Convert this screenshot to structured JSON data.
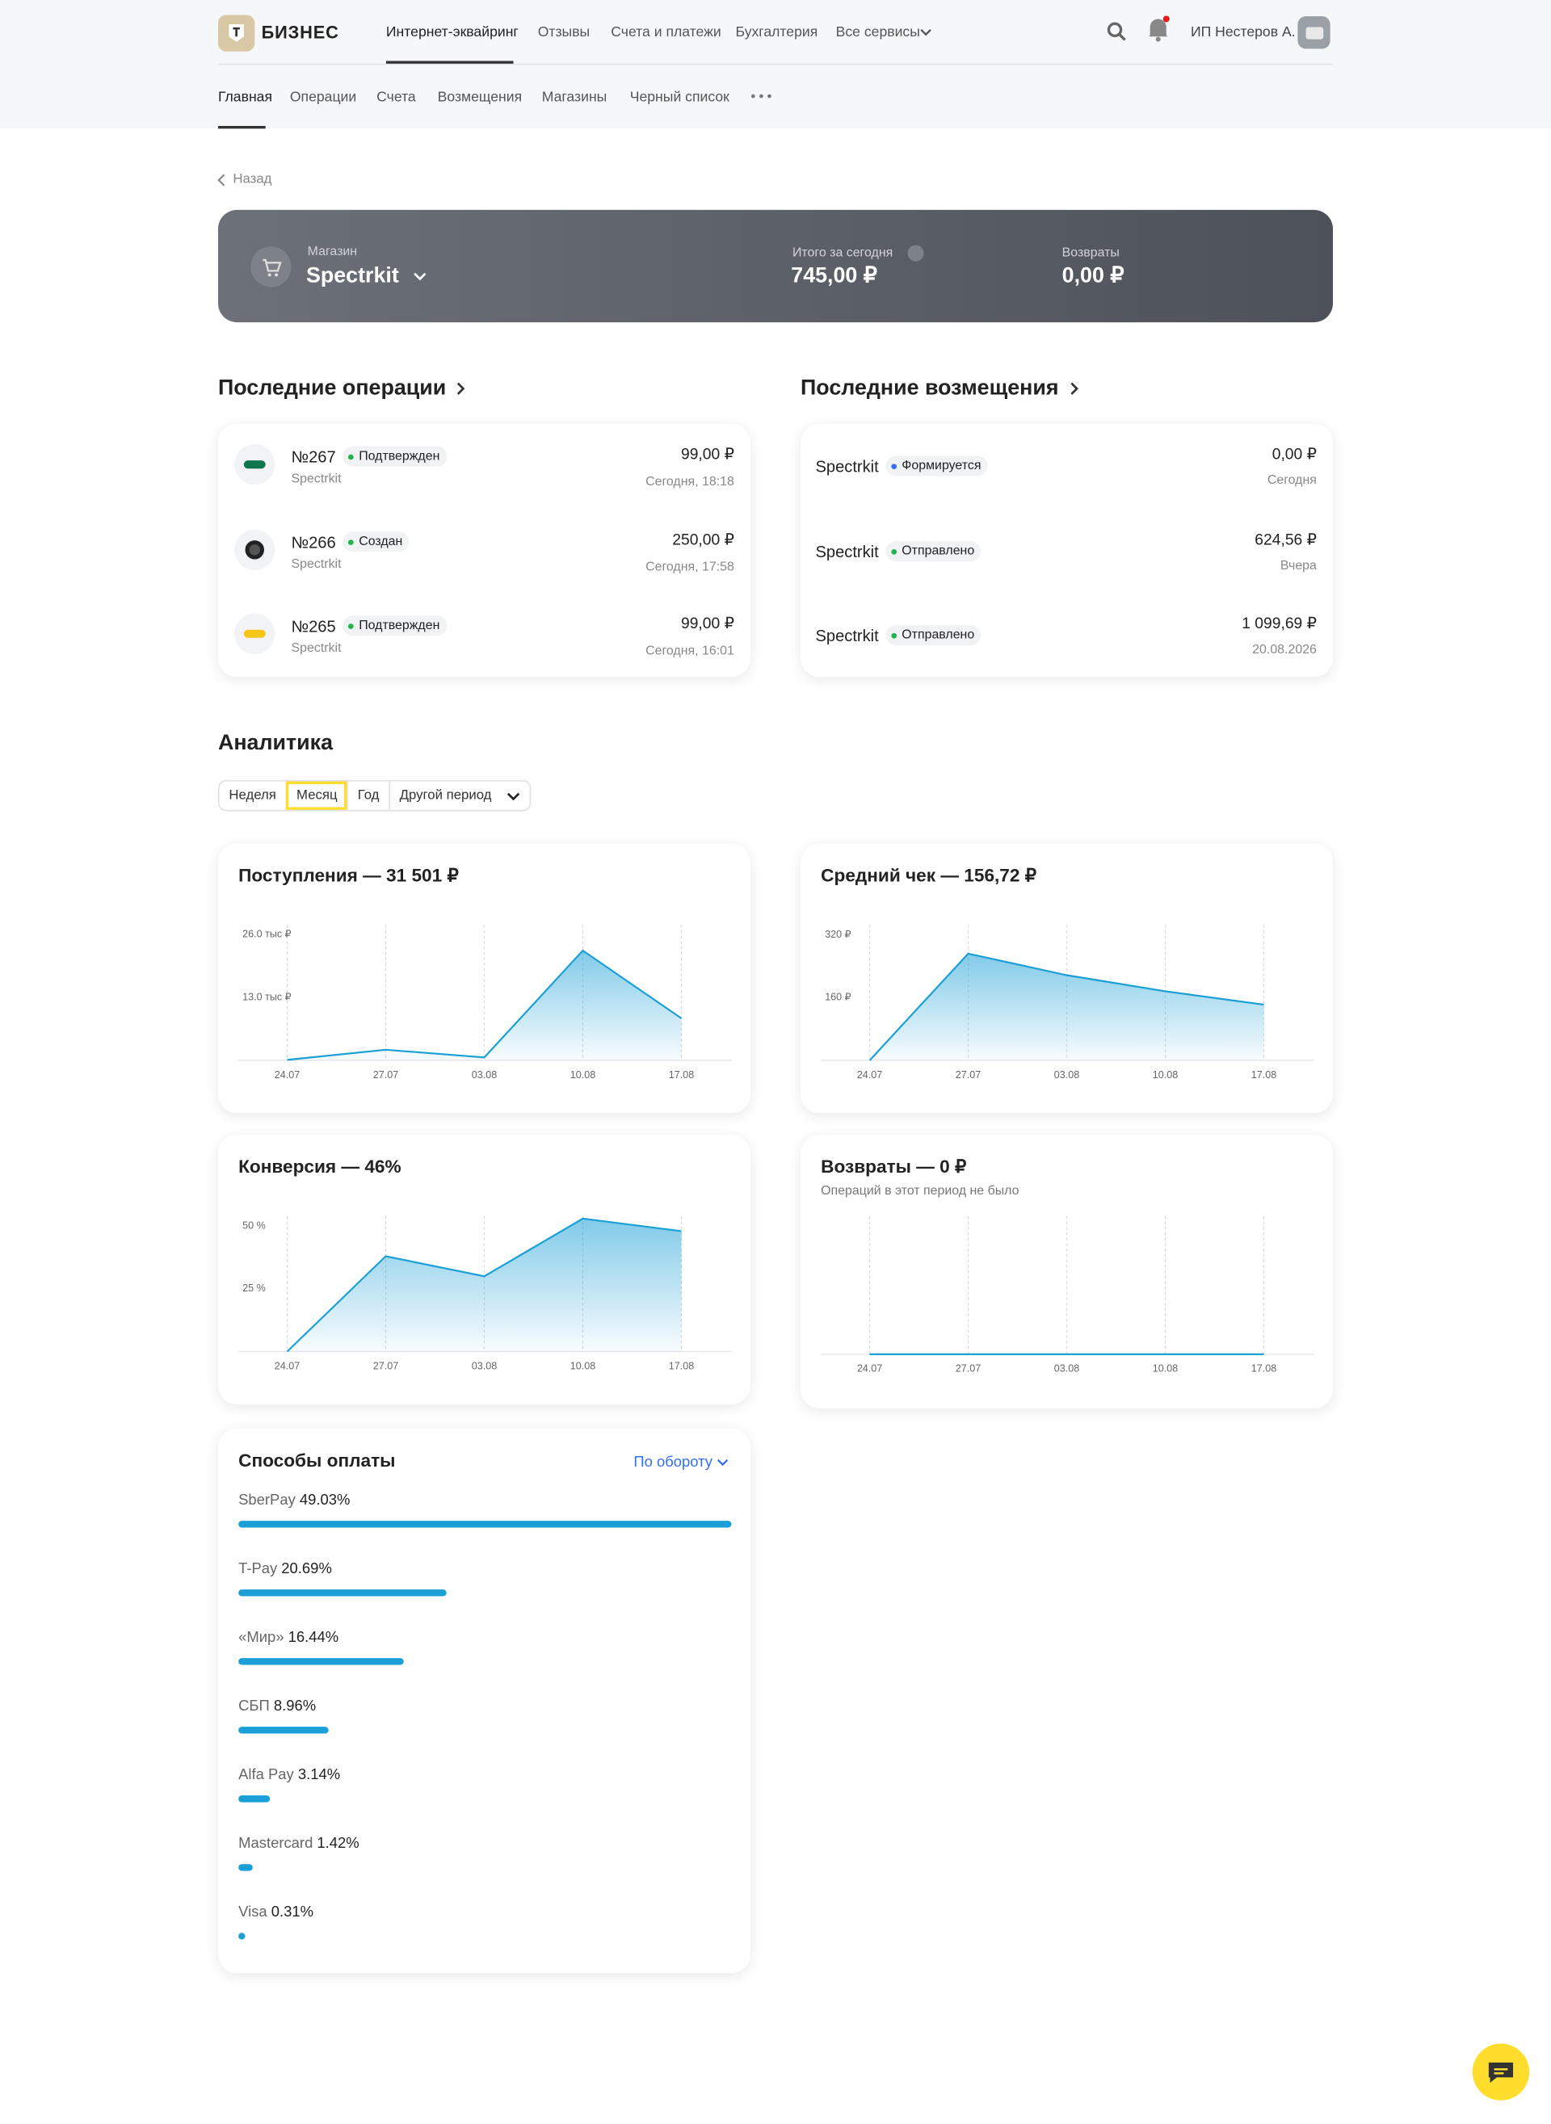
{
  "header": {
    "logo": "БИЗНЕС",
    "nav": [
      "Интернет-эквайринг",
      "Отзывы",
      "Счета и платежи",
      "Бухгалтерия",
      "Все сервисы"
    ],
    "user": "ИП Нестеров А."
  },
  "subnav": [
    "Главная",
    "Операции",
    "Счета",
    "Возмещения",
    "Магазины",
    "Черный список"
  ],
  "back": "Назад",
  "shop": {
    "label": "Магазин",
    "name": "Spectrkit",
    "today_label": "Итого за сегодня",
    "today_value": "745,00 ₽",
    "refunds_label": "Возвраты",
    "refunds_value": "0,00 ₽"
  },
  "operations": {
    "title": "Последние операции",
    "items": [
      {
        "number": "№267",
        "status": "Подтвержден",
        "shop": "Spectrkit",
        "amount": "99,00 ₽",
        "time": "Сегодня, 18:18"
      },
      {
        "number": "№266",
        "status": "Создан",
        "shop": "Spectrkit",
        "amount": "250,00 ₽",
        "time": "Сегодня, 17:58"
      },
      {
        "number": "№265",
        "status": "Подтвержден",
        "shop": "Spectrkit",
        "amount": "99,00 ₽",
        "time": "Сегодня, 16:01"
      }
    ]
  },
  "payouts": {
    "title": "Последние возмещения",
    "items": [
      {
        "shop": "Spectrkit",
        "status": "Формируется",
        "amount": "0,00 ₽",
        "date": "Сегодня"
      },
      {
        "shop": "Spectrkit",
        "status": "Отправлено",
        "amount": "624,56 ₽",
        "date": "Вчера"
      },
      {
        "shop": "Spectrkit",
        "status": "Отправлено",
        "amount": "1 099,69 ₽",
        "date": "20.08.2026"
      }
    ]
  },
  "analytics": {
    "title": "Аналитика",
    "periods": [
      "Неделя",
      "Месяц",
      "Год",
      "Другой период"
    ]
  },
  "payment_methods": {
    "sort": "По обороту"
  },
  "chart_data": [
    {
      "type": "line",
      "title": "Поступления — 31 501 ₽",
      "categories": [
        "24.07",
        "27.07",
        "03.08",
        "10.08",
        "17.08"
      ],
      "values": [
        100,
        2200,
        600,
        22700,
        8700
      ],
      "color": "#1a9fd6",
      "ylim": [
        0,
        28000
      ],
      "yticks": [
        {
          "value": 13000,
          "label": "13.0 тыс ₽"
        },
        {
          "value": 26000,
          "label": "26.0 тыс ₽"
        }
      ]
    },
    {
      "type": "line",
      "title": "Средний чек — 156,72 ₽",
      "categories": [
        "24.07",
        "27.07",
        "03.08",
        "10.08",
        "17.08"
      ],
      "values": [
        0,
        272,
        217,
        176,
        142
      ],
      "color": "#1a9fd6",
      "ylim": [
        0,
        345
      ],
      "yticks": [
        {
          "value": 160,
          "label": "160 ₽"
        },
        {
          "value": 320,
          "label": "320 ₽"
        }
      ]
    },
    {
      "type": "line",
      "title": "Конверсия — 46%",
      "categories": [
        "24.07",
        "27.07",
        "03.08",
        "10.08",
        "17.08"
      ],
      "values": [
        0,
        38,
        30,
        53,
        48
      ],
      "color": "#1a9fd6",
      "ylim": [
        0,
        54
      ],
      "yticks": [
        {
          "value": 25,
          "label": "25 %"
        },
        {
          "value": 50,
          "label": "50 %"
        }
      ]
    },
    {
      "type": "line",
      "title": "Возвраты — 0 ₽",
      "subtitle": "Операций в этот период не было",
      "categories": [
        "24.07",
        "27.07",
        "03.08",
        "10.08",
        "17.08"
      ],
      "values": [
        0,
        0,
        0,
        0,
        0
      ],
      "color": "#1a9fd6",
      "ylim": [
        0,
        1
      ],
      "yticks": []
    },
    {
      "type": "hbar",
      "title": "Способы оплаты",
      "categories": [
        "SberPay",
        "T-Pay",
        "«Мир»",
        "СБП",
        "Alfa Pay",
        "Mastercard",
        "Visa"
      ],
      "values": [
        49.03,
        20.69,
        16.44,
        8.96,
        3.14,
        1.42,
        0.31
      ],
      "value_labels": [
        "49.03%",
        "20.69%",
        "16.44%",
        "8.96%",
        "3.14%",
        "1.42%",
        "0.31%"
      ],
      "color": "#1a9fd6"
    }
  ]
}
